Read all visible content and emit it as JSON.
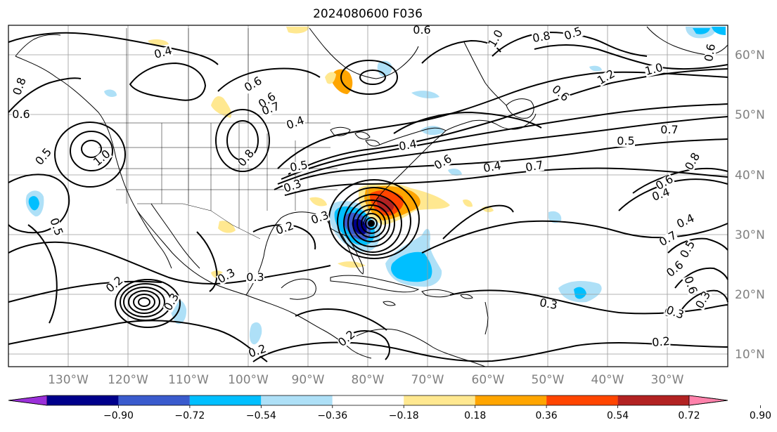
{
  "title": "2024080600 F036",
  "lon_labels": [
    "130°W",
    "120°W",
    "110°W",
    "100°W",
    "90°W",
    "80°W",
    "70°W",
    "60°W",
    "50°W",
    "40°W",
    "30°W"
  ],
  "lat_labels": [
    "60°N",
    "50°N",
    "40°N",
    "30°N",
    "20°N",
    "10°N"
  ],
  "colorbar": {
    "ticks": [
      "−0.90",
      "−0.72",
      "−0.54",
      "−0.36",
      "−0.18",
      "0.18",
      "0.36",
      "0.54",
      "0.72",
      "0.90"
    ],
    "colors": [
      "#9b30d9",
      "#00008b",
      "#3a5bcd",
      "#00bfff",
      "#aee0f7",
      "#ffffff",
      "#ffe890",
      "#ffa500",
      "#ff4500",
      "#b22222",
      "#ff82ab"
    ]
  },
  "contour_labels": [
    "0.8",
    "0.6",
    "0.4",
    "0.5",
    "0.6",
    "1.0",
    "0.5",
    "0.6",
    "1.2",
    "1.0",
    "0.6",
    "0.7",
    "0.8",
    "0.6",
    "0.5",
    "0.4",
    "1.0",
    "0.6",
    "0.7",
    "0.8",
    "0.5",
    "0.6",
    "0.4",
    "0.7",
    "0.5",
    "0.4",
    "0.6",
    "0.7",
    "0.5",
    "0.2",
    "0.3",
    "0.3",
    "0.2",
    "0.2",
    "0.3",
    "0.2",
    "0.6",
    "0.8",
    "0.3",
    "0.3",
    "0.2",
    "0.3",
    "0.3",
    "0.2",
    "0.4",
    "0.6",
    "0.3",
    "0.4"
  ]
}
